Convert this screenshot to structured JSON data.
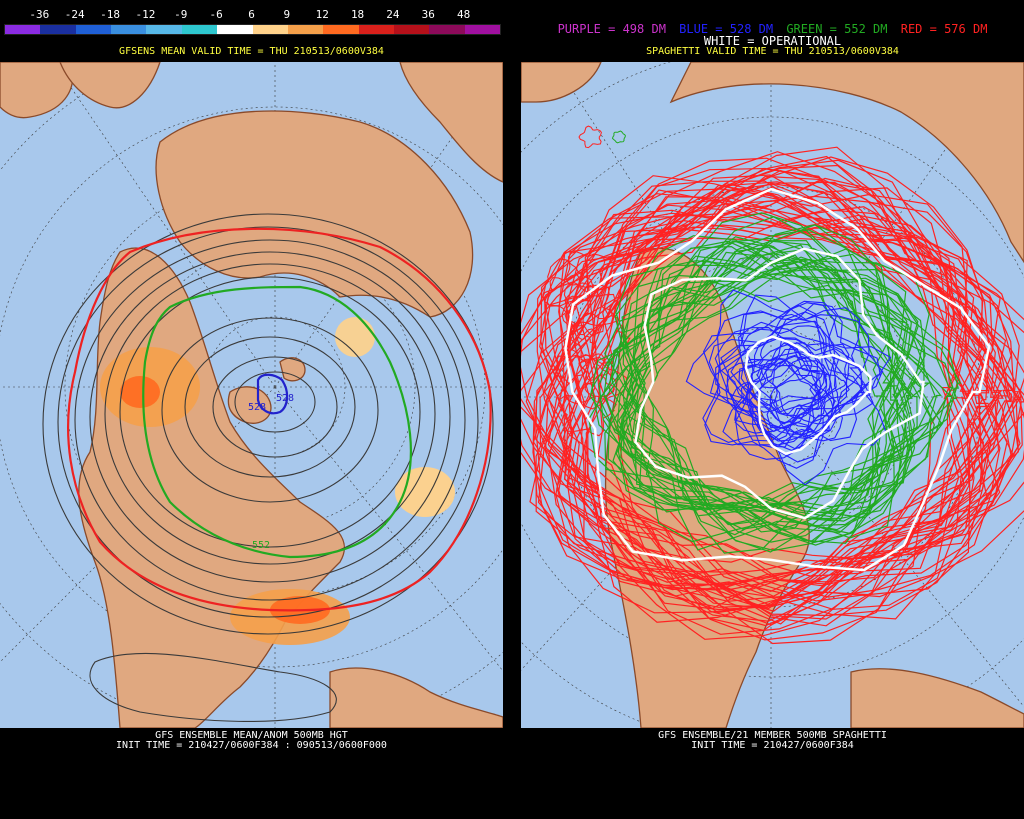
{
  "left": {
    "scale_ticks": [
      "-36",
      "-24",
      "-18",
      "-12",
      "-9",
      "-6",
      "6",
      "9",
      "12",
      "18",
      "24",
      "36",
      "48"
    ],
    "scale_colors": [
      "#8a2be2",
      "#1a2fa0",
      "#1f5fd6",
      "#3a8fe0",
      "#57b8e8",
      "#2ec7cf",
      "#ffffff",
      "#ffd28a",
      "#f5a04a",
      "#ff6a20",
      "#d9201b",
      "#b5101a",
      "#8c0a5a",
      "#a010a0"
    ],
    "valid_time": "GFSENS MEAN VALID TIME = THU 210513/0600V384",
    "labels": {
      "c528a": "528",
      "c528b": "528",
      "c552": "552"
    },
    "footer_line1": "GFS ENSEMBLE MEAN/ANOM 500MB HGT",
    "footer_line2": "INIT TIME = 210427/0600F384 : 090513/0600F000"
  },
  "right": {
    "legend": {
      "purple": "PURPLE = 498 DM",
      "blue": "BLUE = 528 DM",
      "green": "GREEN = 552 DM",
      "red": "RED = 576 DM",
      "white": "WHITE = OPERATIONAL"
    },
    "legend_colors": {
      "purple": "#cc33cc",
      "blue": "#2222ff",
      "green": "#22aa22",
      "red": "#ff2222"
    },
    "valid_time": "SPAGHETTI VALID TIME = THU 210513/0600V384",
    "footer_line1": "GFS ENSEMBLE/21 MEMBER 500MB SPAGHETTI",
    "footer_line2": "INIT TIME = 210427/0600F384"
  }
}
